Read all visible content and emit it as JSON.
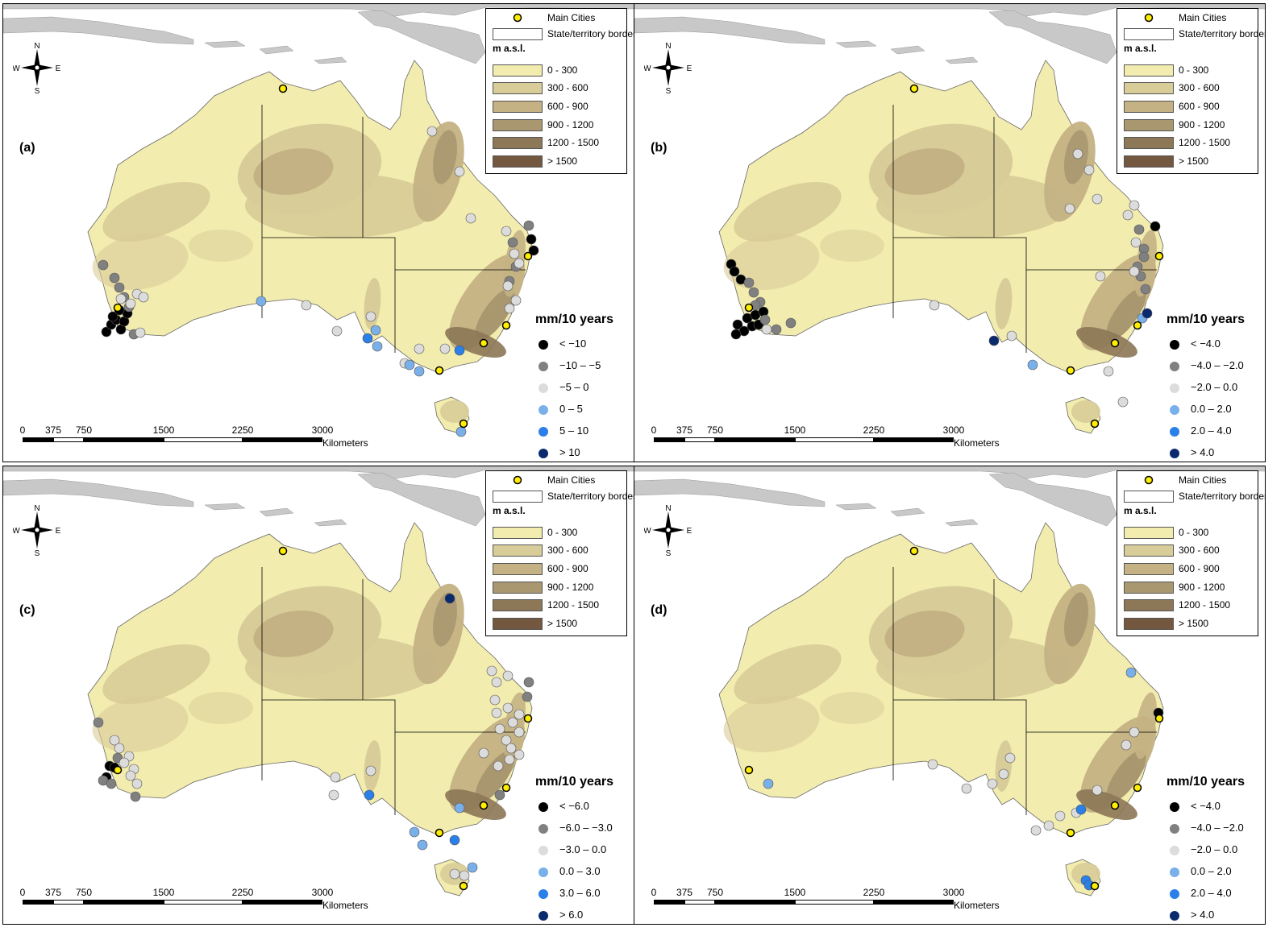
{
  "panels": [
    {
      "label": "(a)",
      "trend_title": "mm/10 years",
      "trend_classes": [
        "< −10",
        "−10 – −5",
        "−5 – 0",
        "0 – 5",
        "5 – 10",
        "> 10"
      ]
    },
    {
      "label": "(b)",
      "trend_title": "mm/10 years",
      "trend_classes": [
        "< −4.0",
        "−4.0 – −2.0",
        "−2.0 – 0.0",
        "0.0 – 2.0",
        "2.0 – 4.0",
        "> 4.0"
      ]
    },
    {
      "label": "(c)",
      "trend_title": "mm/10 years",
      "trend_classes": [
        "< −6.0",
        "−6.0 – −3.0",
        "−3.0 – 0.0",
        "0.0 – 3.0",
        "3.0 – 6.0",
        "> 6.0"
      ]
    },
    {
      "label": "(d)",
      "trend_title": "mm/10 years",
      "trend_classes": [
        "< −4.0",
        "−4.0 – −2.0",
        "−2.0 – 0.0",
        "0.0 – 2.0",
        "2.0 – 4.0",
        "> 4.0"
      ]
    }
  ],
  "legend": {
    "main_cities": "Main Cities",
    "borders": "State/territory borders",
    "elevation_title": "m a.s.l.",
    "elevation_classes": [
      "0 - 300",
      "300 - 600",
      "600 - 900",
      "900 - 1200",
      "1200 - 1500",
      "> 1500"
    ],
    "elevation_colors": [
      "#f2ecaf",
      "#d8cc98",
      "#c4b284",
      "#a99770",
      "#8c7757",
      "#74573f"
    ]
  },
  "trend_colors": [
    "#000000",
    "#808080",
    "#dcdcdc",
    "#79b0ea",
    "#2a7fe8",
    "#0b2a6e"
  ],
  "compass": {
    "n": "N",
    "s": "S",
    "e": "E",
    "w": "W"
  },
  "scale": {
    "ticks": [
      "0",
      "375",
      "750",
      "1500",
      "2250",
      "3000"
    ],
    "unit": "Kilometers"
  },
  "colors": {
    "land_other": "#c8c8c8",
    "city_fill": "#ffee00",
    "border": "#000000"
  }
}
